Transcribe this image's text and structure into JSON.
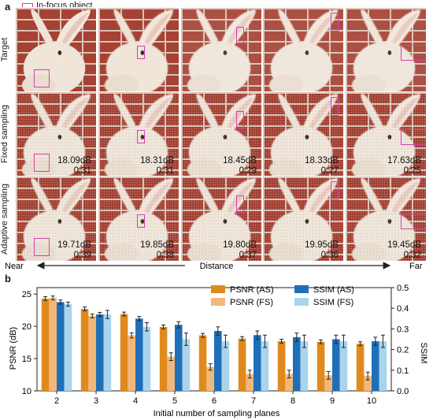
{
  "panel_a": {
    "letter": "a",
    "legend_label": "In-focus object",
    "row_labels": [
      "Target",
      "Fixed sampling",
      "Adaptive sampling"
    ],
    "fixed_metrics": [
      {
        "psnr": "18.09dB",
        "ssim": "0.31"
      },
      {
        "psnr": "18.31dB",
        "ssim": "0.31"
      },
      {
        "psnr": "18.45dB",
        "ssim": "0.29"
      },
      {
        "psnr": "18.33dB",
        "ssim": "0.27"
      },
      {
        "psnr": "17.63dB",
        "ssim": "0.25"
      }
    ],
    "adaptive_metrics": [
      {
        "psnr": "19.71dB",
        "ssim": "0.39"
      },
      {
        "psnr": "19.85dB",
        "ssim": "0.38"
      },
      {
        "psnr": "19.80dB",
        "ssim": "0.37"
      },
      {
        "psnr": "19.95dB",
        "ssim": "0.36"
      },
      {
        "psnr": "19.45dB",
        "ssim": "0.32"
      }
    ],
    "distance_axis": {
      "near": "Near",
      "center": "Distance",
      "far": "Far"
    }
  },
  "panel_b": {
    "letter": "b"
  },
  "colors": {
    "highlight": "#d63fb0",
    "psnr_as": "#e08a1e",
    "psnr_fs": "#f2b879",
    "ssim_as": "#1f6fb8",
    "ssim_fs": "#a9d4ec"
  },
  "chart_data": {
    "type": "bar",
    "categories": [
      "2",
      "3",
      "4",
      "5",
      "6",
      "7",
      "8",
      "9",
      "10"
    ],
    "xlabel": "Initial number of sampling planes",
    "ylabel": "PSNR (dB)",
    "y2label": "SSIM",
    "ylim": [
      10,
      26
    ],
    "y2lim": [
      0,
      0.5
    ],
    "yticks": [
      10,
      15,
      20,
      25
    ],
    "y2ticks": [
      0.0,
      0.1,
      0.2,
      0.3,
      0.4,
      0.5
    ],
    "legend_position": "top-right",
    "series": [
      {
        "name": "PSNR (AS)",
        "axis": "left",
        "values": [
          24.3,
          22.7,
          21.9,
          19.9,
          18.6,
          18.1,
          17.7,
          17.6,
          17.3
        ],
        "err": [
          0.3,
          0.3,
          0.3,
          0.3,
          0.3,
          0.3,
          0.3,
          0.3,
          0.3
        ]
      },
      {
        "name": "PSNR (FS)",
        "axis": "left",
        "values": [
          24.4,
          21.6,
          18.6,
          15.3,
          13.7,
          12.6,
          12.6,
          12.4,
          12.3
        ],
        "err": [
          0.3,
          0.3,
          0.4,
          0.6,
          0.5,
          0.6,
          0.6,
          0.6,
          0.6
        ]
      },
      {
        "name": "SSIM (AS)",
        "axis": "right",
        "values": [
          0.43,
          0.37,
          0.35,
          0.32,
          0.29,
          0.27,
          0.26,
          0.25,
          0.24
        ],
        "err": [
          0.01,
          0.01,
          0.01,
          0.015,
          0.02,
          0.02,
          0.02,
          0.02,
          0.02
        ]
      },
      {
        "name": "SSIM (FS)",
        "axis": "right",
        "values": [
          0.42,
          0.37,
          0.31,
          0.25,
          0.24,
          0.24,
          0.24,
          0.24,
          0.24
        ],
        "err": [
          0.01,
          0.02,
          0.02,
          0.03,
          0.03,
          0.03,
          0.03,
          0.03,
          0.03
        ]
      }
    ]
  }
}
